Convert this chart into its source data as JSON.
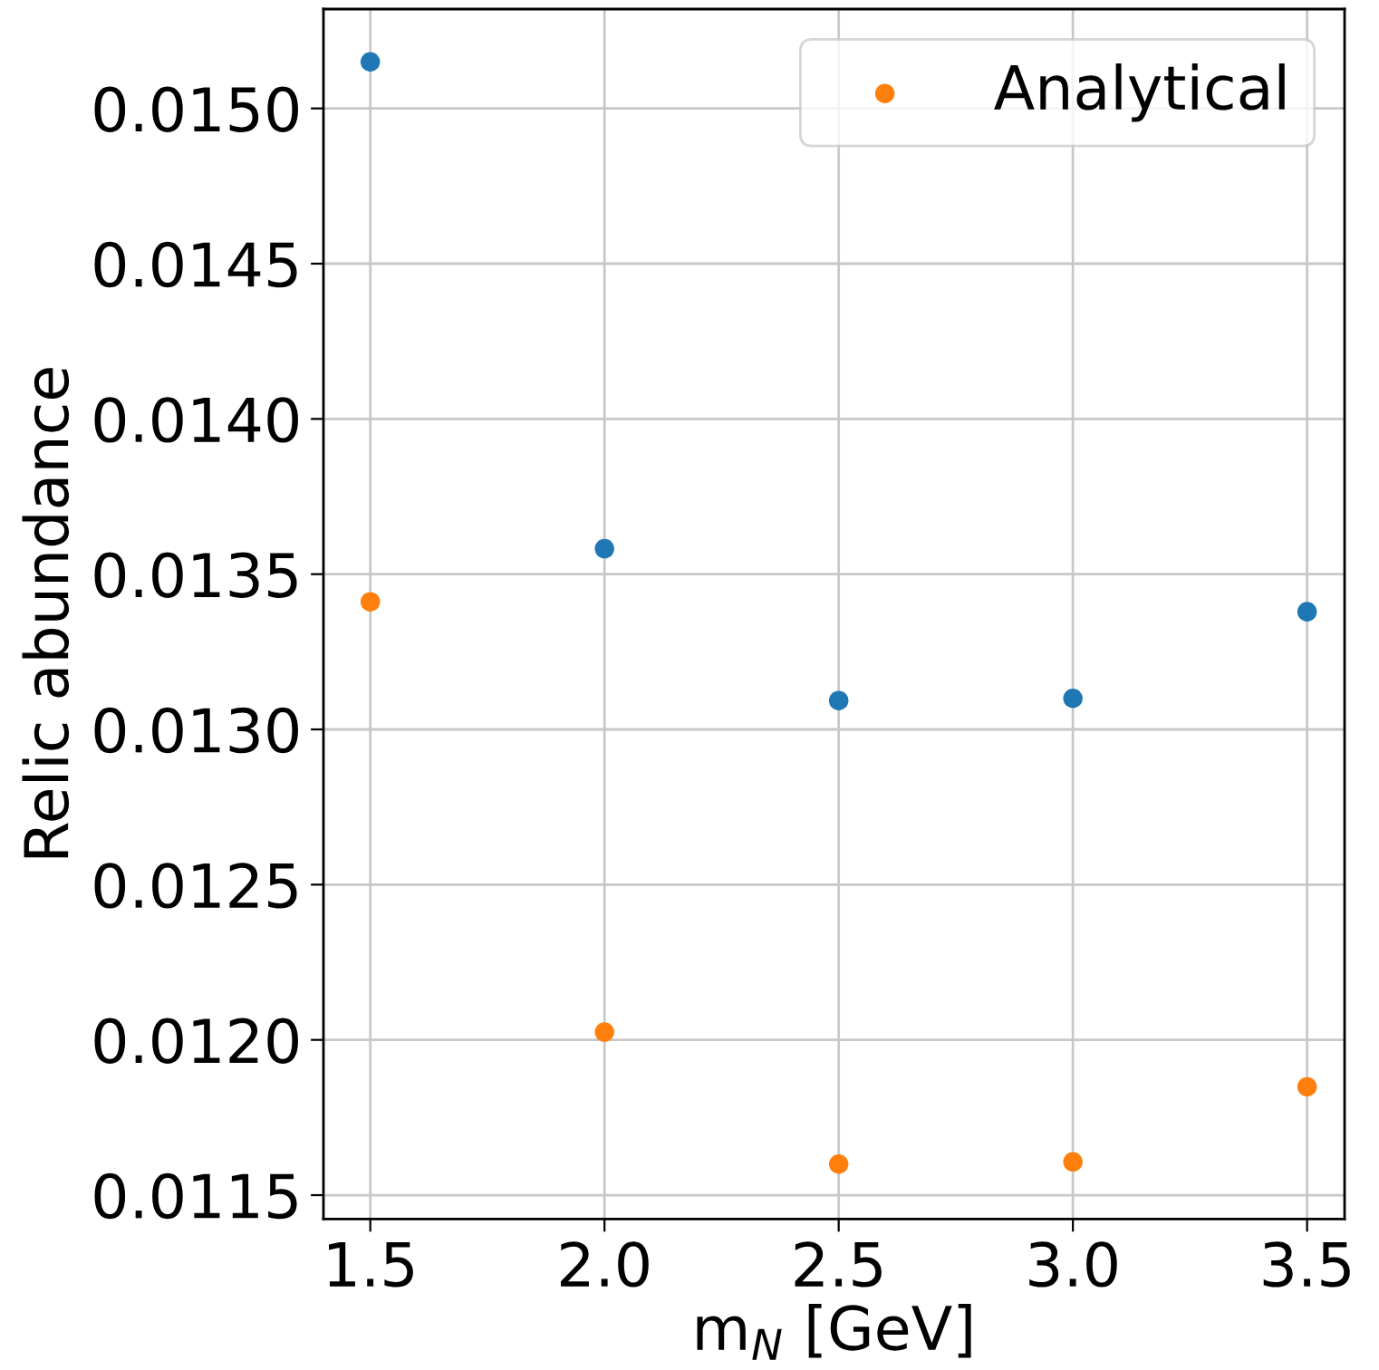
{
  "chart_data": {
    "type": "scatter",
    "xlabel": "m$_{N}$ [GeV]",
    "ylabel": "Relic abundance",
    "x": [
      1.5,
      2.0,
      2.5,
      3.0,
      3.5
    ],
    "series": [
      {
        "color": "#1f77b4",
        "values": [
          0.01515,
          0.013582,
          0.013093,
          0.0131,
          0.013379
        ]
      },
      {
        "name": "Analytical",
        "color": "#ff7f0e",
        "values": [
          0.013411,
          0.012025,
          0.0116,
          0.011607,
          0.011849
        ]
      }
    ],
    "xlim": [
      1.4,
      3.58
    ],
    "xticks": [
      {
        "value": 1.5,
        "label": "1.5"
      },
      {
        "value": 2.0,
        "label": "2.0"
      },
      {
        "value": 2.5,
        "label": "2.5"
      },
      {
        "value": 3.0,
        "label": "3.0"
      },
      {
        "value": 3.5,
        "label": "3.5"
      }
    ],
    "ylim": [
      0.011423,
      0.01532
    ],
    "yticks": [
      {
        "value": 0.0115,
        "label": "0.0115"
      },
      {
        "value": 0.012,
        "label": "0.0120"
      },
      {
        "value": 0.0125,
        "label": "0.0125"
      },
      {
        "value": 0.013,
        "label": "0.0130"
      },
      {
        "value": 0.0135,
        "label": "0.0135"
      },
      {
        "value": 0.014,
        "label": "0.0140"
      },
      {
        "value": 0.0145,
        "label": "0.0145"
      },
      {
        "value": 0.015,
        "label": "0.0150"
      }
    ],
    "grid": true,
    "legend": "top right",
    "marker": "circle"
  }
}
